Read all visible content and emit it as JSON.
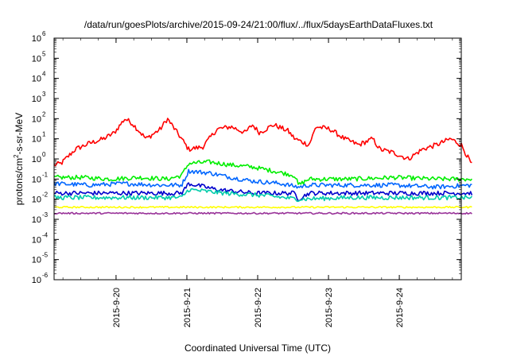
{
  "chart_data": {
    "type": "line",
    "title": "/data/run/goesPlots/archive/2015-09-24/21:00/flux/../flux/5daysEarthDataFluxes.txt",
    "xlabel": "Coordinated Universal Time (UTC)",
    "ylabel": {
      "pre": "protons/cm",
      "sup": "2",
      "post": "-s-sr-MeV"
    },
    "yscale": "log",
    "ylim_exponents": [
      -6,
      6
    ],
    "y_ticks": [
      {
        "base": "10",
        "exp": "-6"
      },
      {
        "base": "10",
        "exp": "-5"
      },
      {
        "base": "10",
        "exp": "-4"
      },
      {
        "base": "10",
        "exp": "-3"
      },
      {
        "base": "10",
        "exp": "-2"
      },
      {
        "base": "10",
        "exp": "-1"
      },
      {
        "base": "10",
        "exp": "0"
      },
      {
        "base": "10",
        "exp": "1"
      },
      {
        "base": "10",
        "exp": "2"
      },
      {
        "base": "10",
        "exp": "3"
      },
      {
        "base": "10",
        "exp": "4"
      },
      {
        "base": "10",
        "exp": "5"
      },
      {
        "base": "10",
        "exp": "6"
      }
    ],
    "xlim": [
      "2015-09-19 03:00",
      "2015-09-24 21:00"
    ],
    "x_ticks": [
      "2015-9-20",
      "2015-9-21",
      "2015-9-22",
      "2015-9-23",
      "2015-9-24"
    ],
    "grid": false,
    "series": [
      {
        "color": "#ff0000",
        "values": [
          [
            0.0,
            0.5
          ],
          [
            0.1,
            0.6
          ],
          [
            0.3,
            3
          ],
          [
            0.5,
            6
          ],
          [
            0.7,
            10
          ],
          [
            0.85,
            20
          ],
          [
            1.0,
            100
          ],
          [
            1.1,
            60
          ],
          [
            1.3,
            10
          ],
          [
            1.5,
            30
          ],
          [
            1.6,
            100
          ],
          [
            1.8,
            10
          ],
          [
            1.9,
            3
          ],
          [
            2.1,
            4
          ],
          [
            2.3,
            30
          ],
          [
            2.5,
            40
          ],
          [
            2.7,
            20
          ],
          [
            2.8,
            50
          ],
          [
            2.9,
            20
          ],
          [
            3.1,
            50
          ],
          [
            3.3,
            25
          ],
          [
            3.4,
            10
          ],
          [
            3.6,
            5
          ],
          [
            3.7,
            40
          ],
          [
            3.9,
            30
          ],
          [
            4.1,
            10
          ],
          [
            4.3,
            5
          ],
          [
            4.5,
            10
          ],
          [
            4.6,
            3
          ],
          [
            4.8,
            2
          ],
          [
            5.0,
            1
          ],
          [
            5.2,
            3
          ],
          [
            5.4,
            5
          ],
          [
            5.6,
            10
          ],
          [
            5.75,
            5
          ],
          [
            5.9,
            0.5
          ]
        ]
      },
      {
        "color": "#00ee00",
        "values": [
          [
            0.0,
            0.12
          ],
          [
            0.4,
            0.12
          ],
          [
            0.8,
            0.1
          ],
          [
            1.2,
            0.12
          ],
          [
            1.6,
            0.1
          ],
          [
            1.8,
            0.15
          ],
          [
            1.9,
            0.6
          ],
          [
            2.2,
            0.7
          ],
          [
            2.5,
            0.5
          ],
          [
            2.8,
            0.4
          ],
          [
            3.1,
            0.25
          ],
          [
            3.4,
            0.15
          ],
          [
            3.45,
            0.05
          ],
          [
            3.6,
            0.1
          ],
          [
            4.2,
            0.1
          ],
          [
            4.8,
            0.12
          ],
          [
            5.4,
            0.1
          ],
          [
            5.9,
            0.1
          ]
        ]
      },
      {
        "color": "#0066ff",
        "values": [
          [
            0.0,
            0.06
          ],
          [
            0.5,
            0.05
          ],
          [
            1.0,
            0.06
          ],
          [
            1.5,
            0.05
          ],
          [
            1.8,
            0.05
          ],
          [
            1.9,
            0.25
          ],
          [
            2.2,
            0.2
          ],
          [
            2.5,
            0.12
          ],
          [
            2.8,
            0.08
          ],
          [
            3.2,
            0.06
          ],
          [
            3.45,
            0.04
          ],
          [
            3.6,
            0.05
          ],
          [
            4.2,
            0.05
          ],
          [
            4.8,
            0.05
          ],
          [
            5.4,
            0.04
          ],
          [
            5.9,
            0.05
          ]
        ]
      },
      {
        "color": "#0000cc",
        "values": [
          [
            0.0,
            0.02
          ],
          [
            0.6,
            0.02
          ],
          [
            1.2,
            0.02
          ],
          [
            1.8,
            0.02
          ],
          [
            1.9,
            0.06
          ],
          [
            2.3,
            0.03
          ],
          [
            2.8,
            0.02
          ],
          [
            3.4,
            0.02
          ],
          [
            3.45,
            0.01
          ],
          [
            3.6,
            0.02
          ],
          [
            4.2,
            0.02
          ],
          [
            4.8,
            0.02
          ],
          [
            5.4,
            0.02
          ],
          [
            5.9,
            0.02
          ]
        ]
      },
      {
        "color": "#00ccaa",
        "values": [
          [
            0.0,
            0.012
          ],
          [
            1.0,
            0.012
          ],
          [
            1.8,
            0.012
          ],
          [
            1.9,
            0.03
          ],
          [
            2.4,
            0.02
          ],
          [
            3.0,
            0.015
          ],
          [
            3.45,
            0.01
          ],
          [
            4.2,
            0.012
          ],
          [
            5.0,
            0.012
          ],
          [
            5.9,
            0.012
          ]
        ]
      },
      {
        "color": "#ffff00",
        "values": [
          [
            0.0,
            0.004
          ],
          [
            1.0,
            0.004
          ],
          [
            2.0,
            0.004
          ],
          [
            3.0,
            0.004
          ],
          [
            4.0,
            0.004
          ],
          [
            5.0,
            0.004
          ],
          [
            5.9,
            0.004
          ]
        ]
      },
      {
        "color": "#993399",
        "values": [
          [
            0.0,
            0.002
          ],
          [
            1.0,
            0.002
          ],
          [
            2.0,
            0.002
          ],
          [
            3.0,
            0.002
          ],
          [
            4.0,
            0.002
          ],
          [
            5.0,
            0.002
          ],
          [
            5.9,
            0.002
          ]
        ]
      }
    ]
  }
}
